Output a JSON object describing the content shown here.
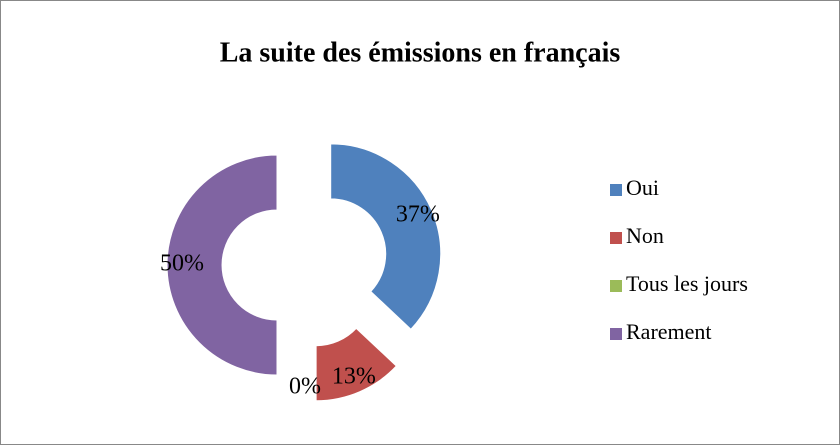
{
  "chart_data": {
    "type": "donut",
    "title": "La suite des émissions en français",
    "categories": [
      "Oui",
      "Non",
      "Tous les jours",
      "Rarement"
    ],
    "values": [
      37,
      13,
      0,
      50
    ],
    "value_labels": [
      "37%",
      "13%",
      "0%",
      "50%"
    ],
    "colors": [
      "#4f81bd",
      "#c0504d",
      "#9bbb59",
      "#8064a2"
    ],
    "legend": "right"
  }
}
